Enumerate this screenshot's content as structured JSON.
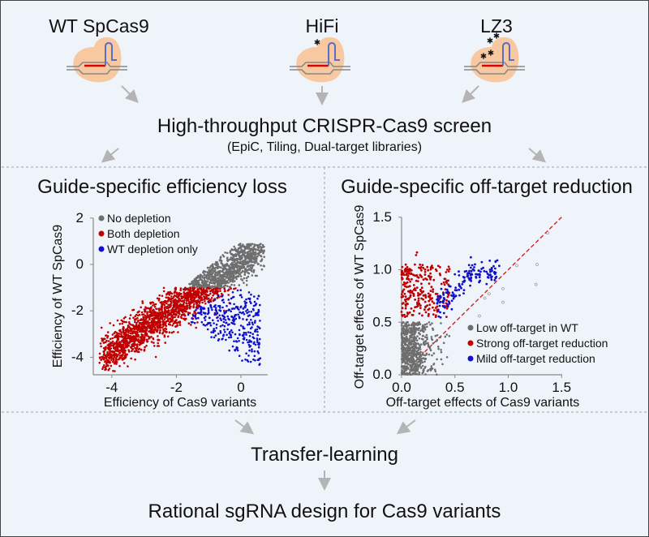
{
  "variants": [
    {
      "name": "WT SpCas9",
      "mutations": 0
    },
    {
      "name": "HiFi",
      "mutations": 1
    },
    {
      "name": "LZ3",
      "mutations": 4
    }
  ],
  "screen": {
    "title": "High-throughput CRISPR-Cas9 screen",
    "subtitle": "(EpiC, Tiling, Dual-target libraries)"
  },
  "transfer": "Transfer-learning",
  "final": "Rational sgRNA design for Cas9 variants",
  "colors": {
    "background": "#eef4fa",
    "gray": "#6e6e6e",
    "red": "#c00000",
    "blue": "#1010c8",
    "protein": "#f8c9a0"
  },
  "chart_data": [
    {
      "type": "scatter",
      "title": "Guide-specific efficiency loss",
      "xlabel": "Efficiency of Cas9 variants",
      "ylabel": "Efficiency of WT SpCas9",
      "xlim": [
        -4.6,
        0.8
      ],
      "ylim": [
        -4.7,
        2.2
      ],
      "xticks": [
        "-4",
        "-2",
        "0"
      ],
      "xtick_values": [
        -4,
        -2,
        0
      ],
      "yticks": [
        "2",
        "0",
        "-2",
        "-4"
      ],
      "ytick_values": [
        2,
        0,
        -2,
        -4
      ],
      "legend_position": "top-left",
      "series": [
        {
          "name": "No depletion",
          "color": "#6e6e6e"
        },
        {
          "name": "Both depletion",
          "color": "#c00000"
        },
        {
          "name": "WT depletion only",
          "color": "#1010c8"
        }
      ]
    },
    {
      "type": "scatter",
      "title": "Guide-specific off-target reduction",
      "xlabel": "Off-target effects of Cas9 variants",
      "ylabel": "Off-target effects of WT SpCas9",
      "xlim": [
        0,
        1.5
      ],
      "ylim": [
        0,
        1.5
      ],
      "xticks": [
        "0.0",
        "0.5",
        "1.0",
        "1.5"
      ],
      "xtick_values": [
        0,
        0.5,
        1.0,
        1.5
      ],
      "yticks": [
        "0.0",
        "0.5",
        "1.0",
        "1.5"
      ],
      "ytick_values": [
        0,
        0.5,
        1.0,
        1.5
      ],
      "diagonal": "y = x",
      "legend_position": "bottom-right",
      "series": [
        {
          "name": "Low off-target in WT",
          "color": "#6e6e6e"
        },
        {
          "name": "Strong off-target reduction",
          "color": "#c00000"
        },
        {
          "name": "Mild off-target reduction",
          "color": "#1010c8"
        }
      ]
    }
  ]
}
